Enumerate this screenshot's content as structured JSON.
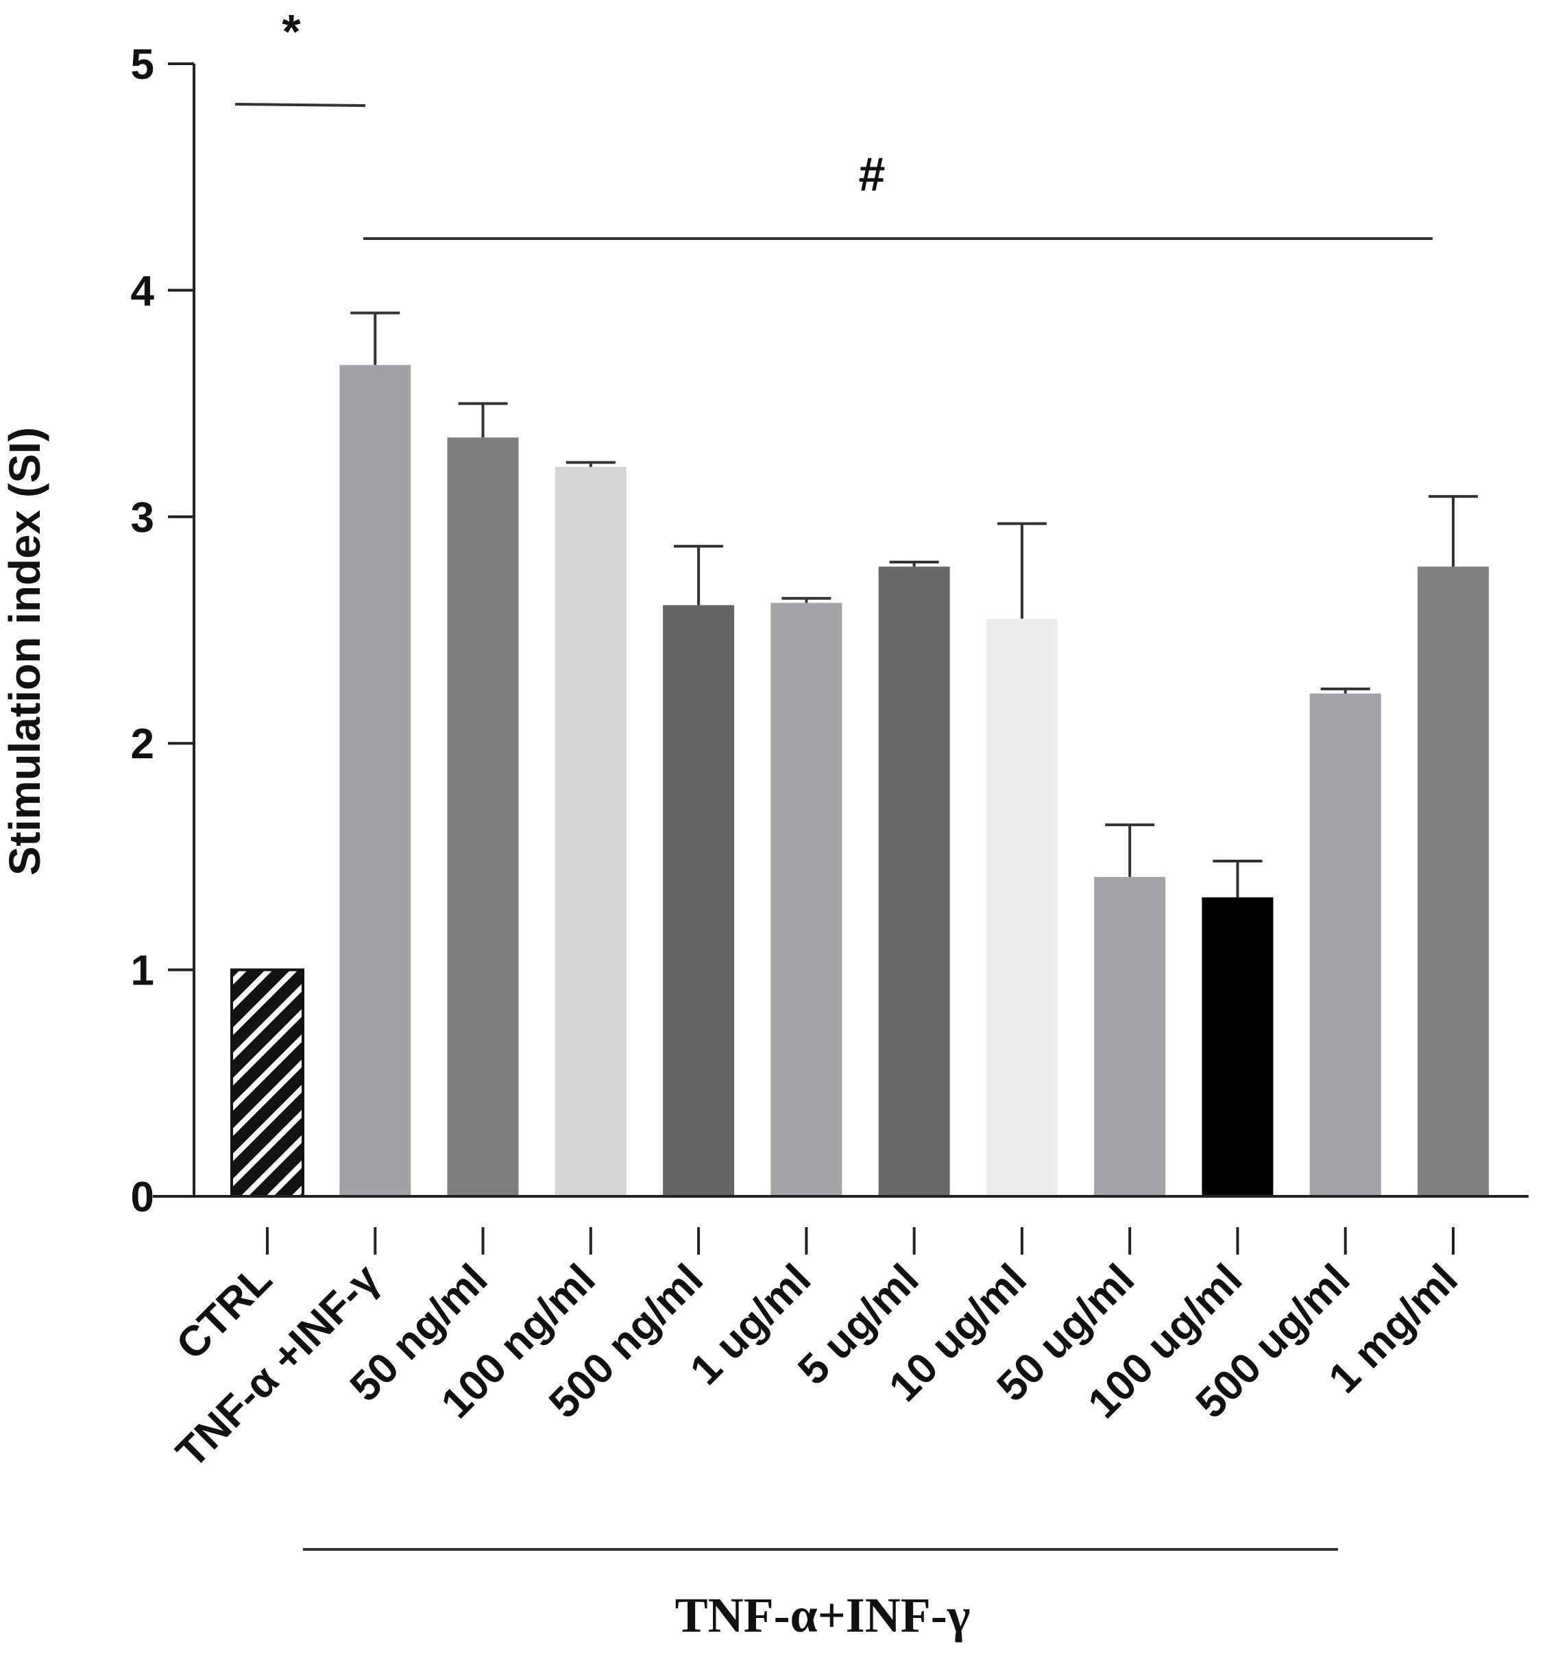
{
  "chart_data": {
    "type": "bar",
    "title": "",
    "xlabel": "",
    "ylabel": "Stimulation index (SI)",
    "ylim": [
      0,
      5
    ],
    "yticks": [
      0,
      1,
      2,
      3,
      4,
      5
    ],
    "grid": false,
    "categories": [
      "CTRL",
      "TNF-α +INF-γ",
      "50 ng/ml",
      "100 ng/ml",
      "500 ng/ml",
      "1 ug/ml",
      "5 ug/ml",
      "10 ug/ml",
      "50 ug/ml",
      "100 ug/ml",
      "500 ug/ml",
      "1 mg/ml"
    ],
    "values": [
      1.0,
      3.67,
      3.35,
      3.22,
      2.61,
      2.62,
      2.78,
      2.55,
      1.41,
      1.32,
      2.22,
      2.78
    ],
    "errors": [
      0.0,
      0.23,
      0.15,
      0.02,
      0.26,
      0.02,
      0.02,
      0.42,
      0.23,
      0.16,
      0.02,
      0.31
    ],
    "bar_colors": [
      "hatched",
      "#a2a2a6",
      "#7d7d7d",
      "#d6d6d6",
      "#646464",
      "#a4a4a8",
      "#686868",
      "#ececec",
      "#a3a3a7",
      "#000000",
      "#a3a3a7",
      "#808080"
    ],
    "annotations": [
      {
        "text": "*",
        "meaning": "significance CTRL vs TNF-α +INF-γ"
      },
      {
        "text": "#",
        "meaning": "significance vs TNF-α +INF-γ across treatment groups"
      }
    ],
    "group_label": "TNF-α+INF-γ"
  }
}
